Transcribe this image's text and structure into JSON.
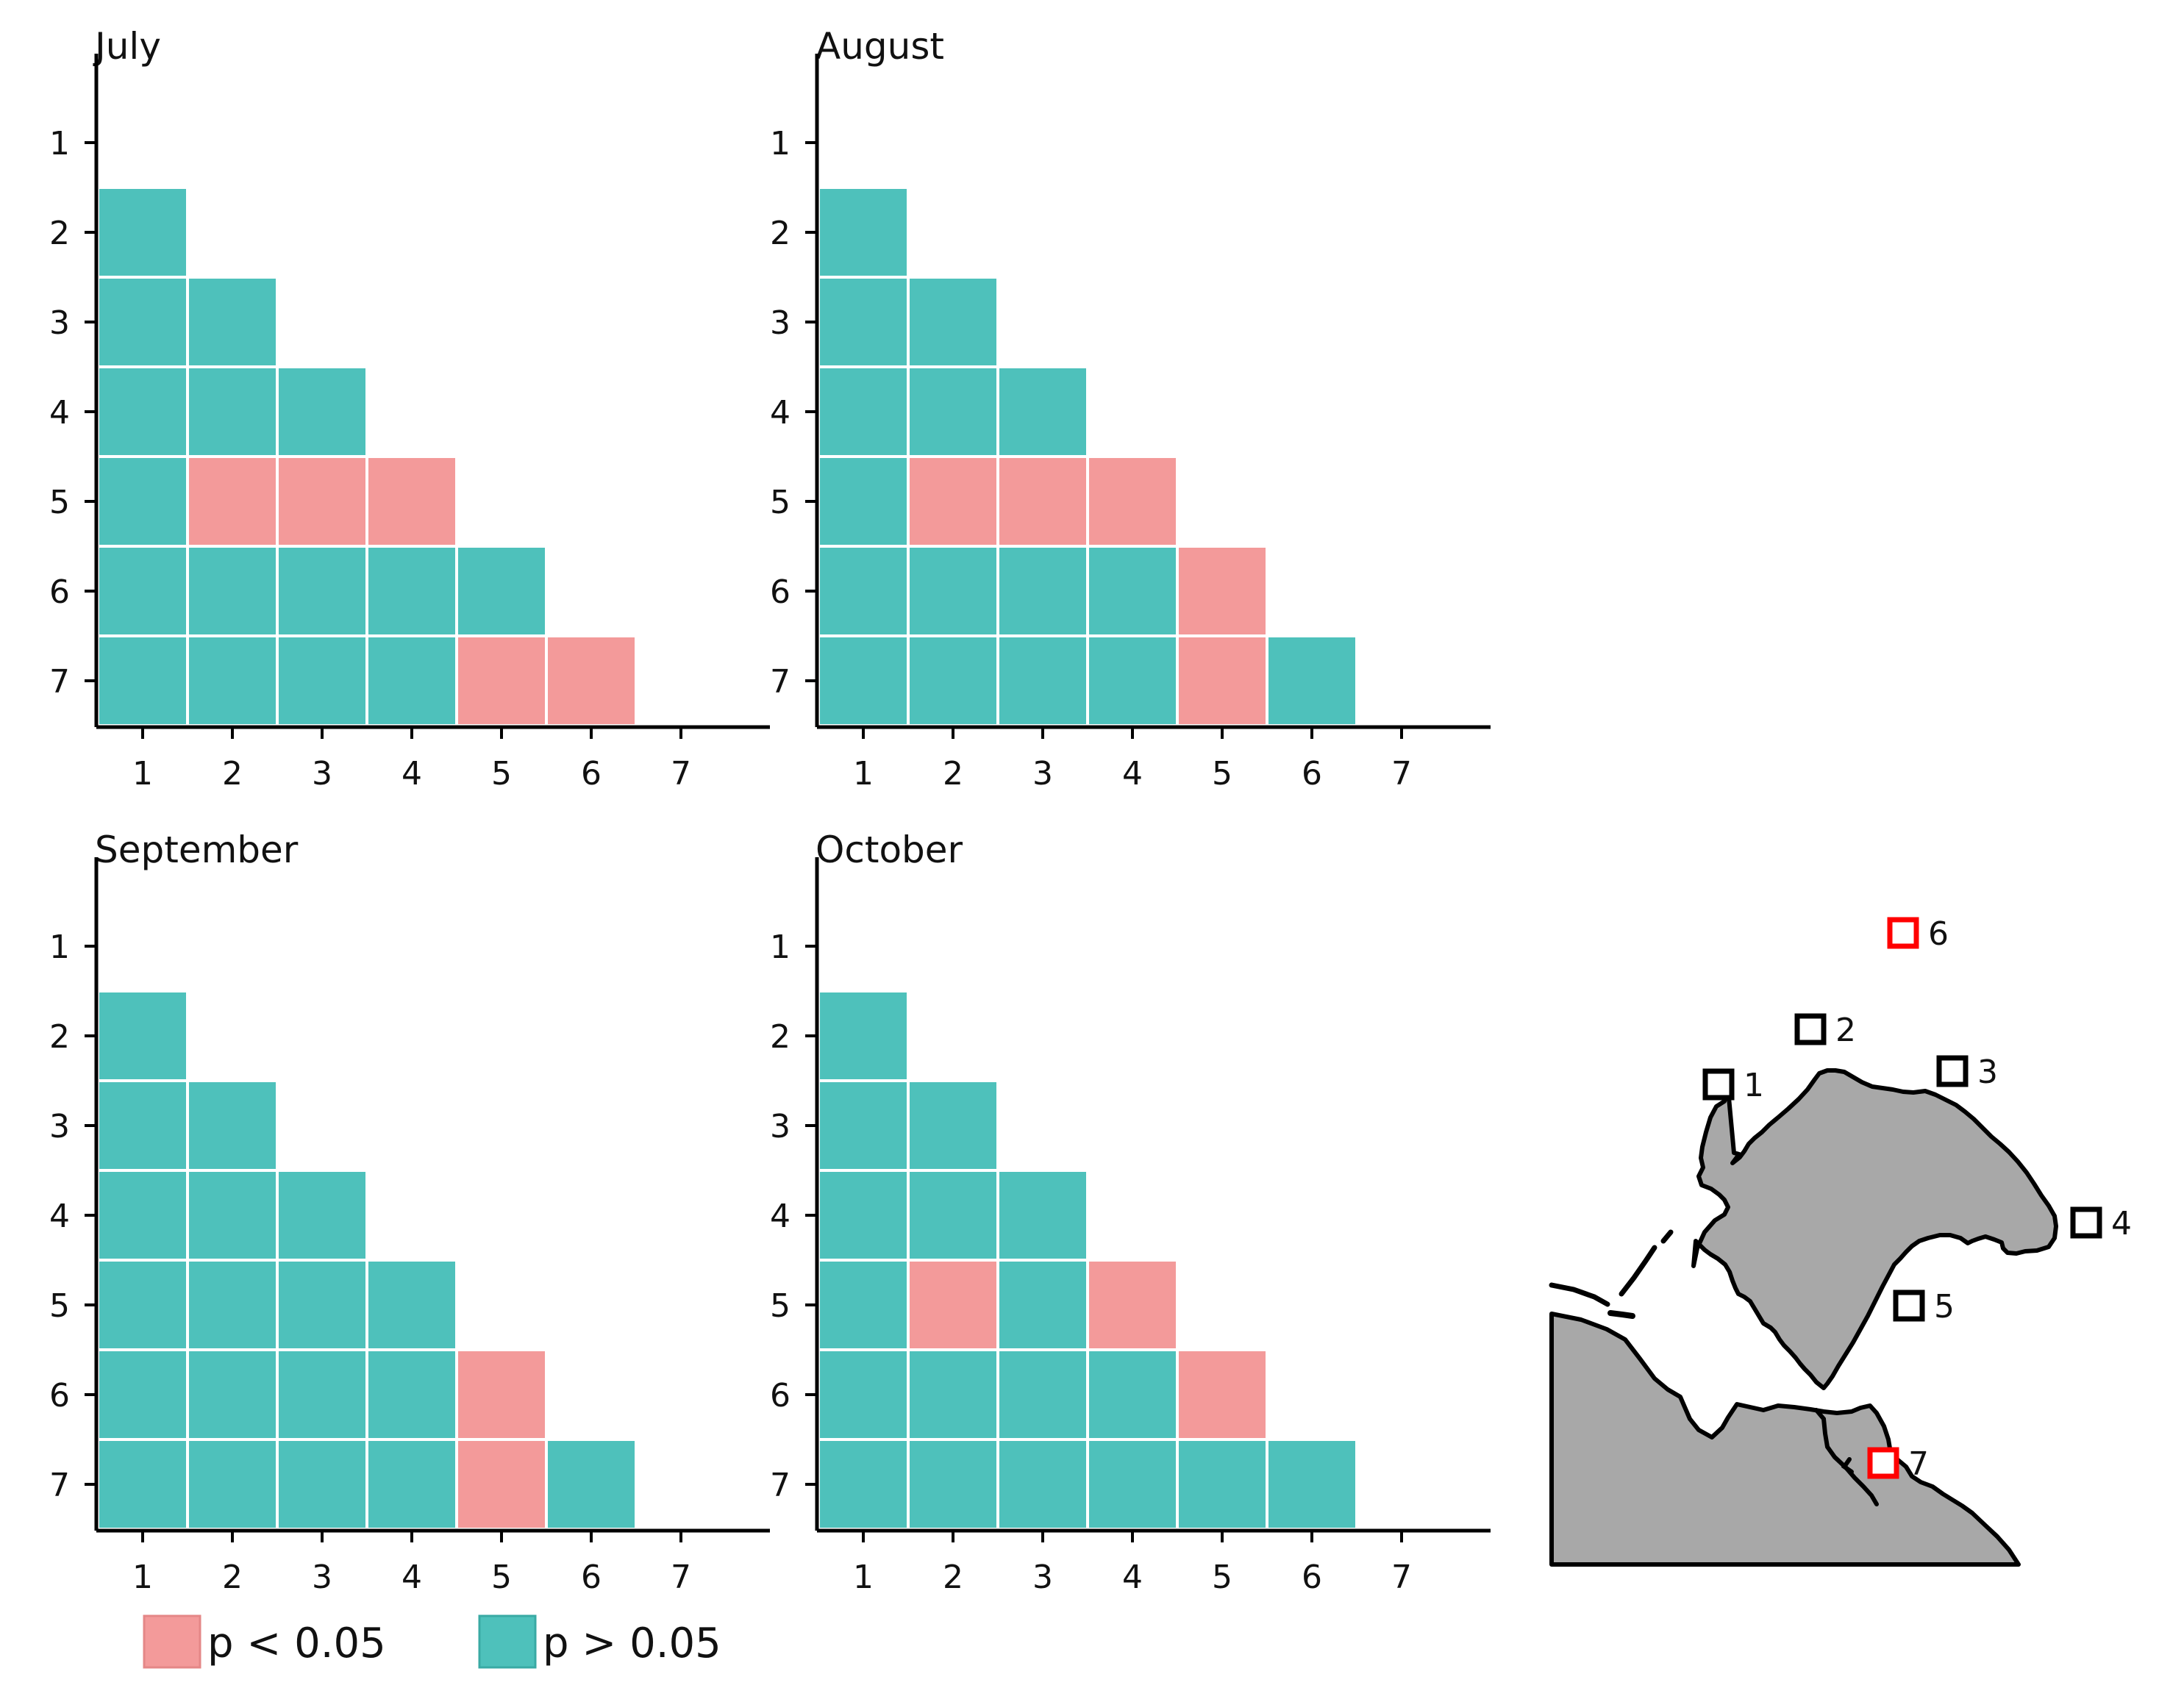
{
  "chart_data": {
    "type": "heatmap",
    "description_legend": [
      {
        "key": "sig",
        "label": "p < 0.05",
        "color": "#f39a9a"
      },
      {
        "key": "ns",
        "label": "p > 0.05",
        "color": "#4ec1bb"
      }
    ],
    "x_ticks": [
      "1",
      "2",
      "3",
      "4",
      "5",
      "6",
      "7"
    ],
    "y_ticks": [
      "1",
      "2",
      "3",
      "4",
      "5",
      "6",
      "7"
    ],
    "panels": [
      {
        "title": "July",
        "significant_cells": [
          [
            5,
            2
          ],
          [
            5,
            3
          ],
          [
            5,
            4
          ],
          [
            7,
            5
          ],
          [
            7,
            6
          ]
        ]
      },
      {
        "title": "August",
        "significant_cells": [
          [
            5,
            2
          ],
          [
            5,
            3
          ],
          [
            5,
            4
          ],
          [
            6,
            5
          ],
          [
            7,
            5
          ]
        ]
      },
      {
        "title": "September",
        "significant_cells": [
          [
            6,
            5
          ],
          [
            7,
            5
          ]
        ]
      },
      {
        "title": "October",
        "significant_cells": [
          [
            5,
            2
          ],
          [
            5,
            4
          ],
          [
            6,
            5
          ]
        ]
      }
    ],
    "matrix_note": "lower triangle, row index > column index"
  },
  "map": {
    "land_color": "#a8a8a8",
    "sites": [
      {
        "id": "1",
        "color": "#000000"
      },
      {
        "id": "2",
        "color": "#000000"
      },
      {
        "id": "3",
        "color": "#000000"
      },
      {
        "id": "4",
        "color": "#000000"
      },
      {
        "id": "5",
        "color": "#000000"
      },
      {
        "id": "6",
        "color": "#ff0000"
      },
      {
        "id": "7",
        "color": "#ff0000"
      }
    ]
  }
}
